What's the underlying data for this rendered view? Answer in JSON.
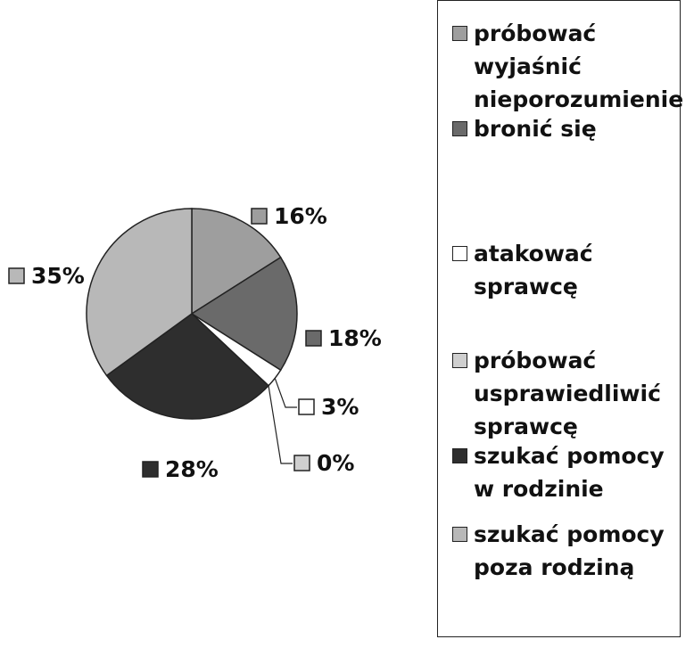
{
  "chart_data": {
    "type": "pie",
    "categories": [
      "próbować wyjaśnić nieporozumienie",
      "bronić się",
      "atakować sprawcę",
      "próbować usprawiedliwić sprawcę",
      "szukać pomocy w rodzinie",
      "szukać pomocy poza rodziną"
    ],
    "values": [
      16,
      18,
      3,
      0,
      28,
      35
    ],
    "value_labels": [
      "16%",
      "18%",
      "3%",
      "0%",
      "28%",
      "35%"
    ],
    "colors": [
      "#9e9e9e",
      "#6a6a6a",
      "#ffffff",
      "#cfcfcf",
      "#2e2e2e",
      "#b8b8b8"
    ],
    "legend": "right"
  }
}
